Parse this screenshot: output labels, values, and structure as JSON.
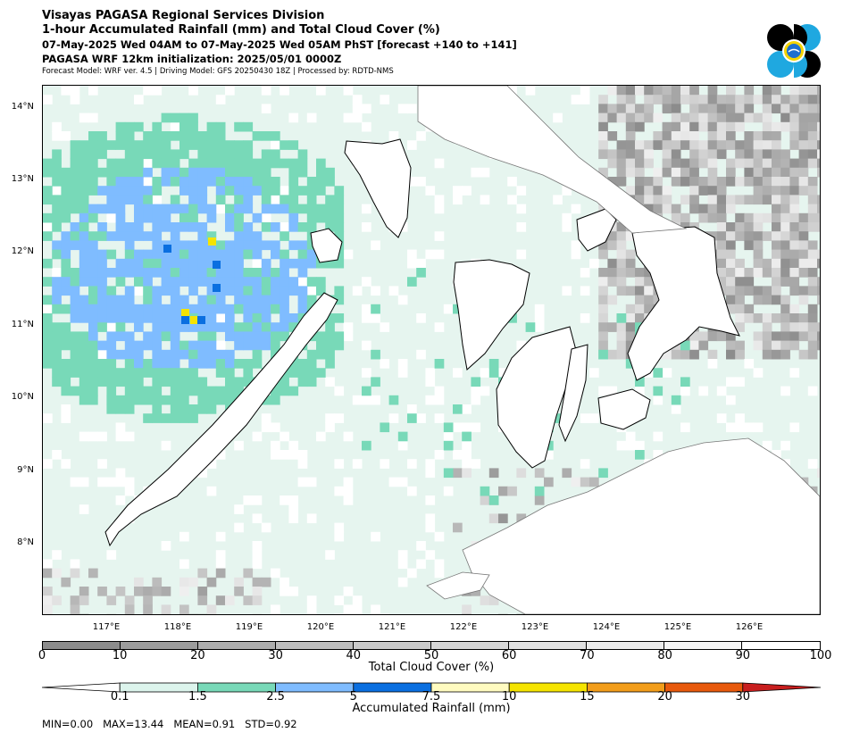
{
  "header": {
    "line1": "Visayas PAGASA Regional Services Division",
    "line2": "1-hour Accumulated Rainfall (mm) and Total Cloud Cover (%)",
    "line3": "07-May-2025 Wed 04AM to 07-May-2025 Wed 05AM PhST [forecast +140 to +141]",
    "line4": "PAGASA WRF 12km initialization: 2025/05/01 0000Z",
    "line5": "Forecast Model: WRF ver. 4.5 | Driving Model: GFS 20250430 18Z | Processed by: RDTD-NMS"
  },
  "map": {
    "lat_labels": [
      "14°N",
      "13°N",
      "12°N",
      "11°N",
      "10°N",
      "9°N",
      "8°N"
    ],
    "lon_labels": [
      "117°E",
      "118°E",
      "119°E",
      "120°E",
      "121°E",
      "122°E",
      "123°E",
      "124°E",
      "125°E",
      "126°E"
    ],
    "colors": {
      "ocean_fill": "#e6f5ef",
      "land_fill": "#ffffff",
      "coastline": "#000000",
      "rain_light": "#dcf4ec",
      "rain_green": "#78d9b8",
      "rain_lightblue": "#7fbcff",
      "rain_blue": "#0a6fe0",
      "rain_yellow": "#f5e400"
    }
  },
  "cloud_colorbar": {
    "label": "Total Cloud Cover (%)",
    "ticks": [
      "0",
      "10",
      "20",
      "30",
      "40",
      "50",
      "60",
      "70",
      "80",
      "90",
      "100"
    ],
    "colors": [
      "#8c8c8c",
      "#9c9c9c",
      "#adadad",
      "#bdbdbd",
      "#cacaca",
      "#d6d6d6",
      "#e0e0e0",
      "#ebebeb",
      "#f5f5f5",
      "#ffffff"
    ]
  },
  "rain_colorbar": {
    "label": "Accumulated Rainfall (mm)",
    "ticks": [
      "0.1",
      "1.5",
      "2.5",
      "5",
      "7.5",
      "10",
      "15",
      "20",
      "30"
    ],
    "colors": [
      "#ffffff",
      "#dcf4ec",
      "#78d9b8",
      "#7fbcff",
      "#0a6fe0",
      "#fffbc0",
      "#f5e400",
      "#f29d1a",
      "#e8590c",
      "#c81e1e"
    ]
  },
  "stats": {
    "text": "MIN=0.00   MAX=13.44   MEAN=0.91   STD=0.92"
  }
}
